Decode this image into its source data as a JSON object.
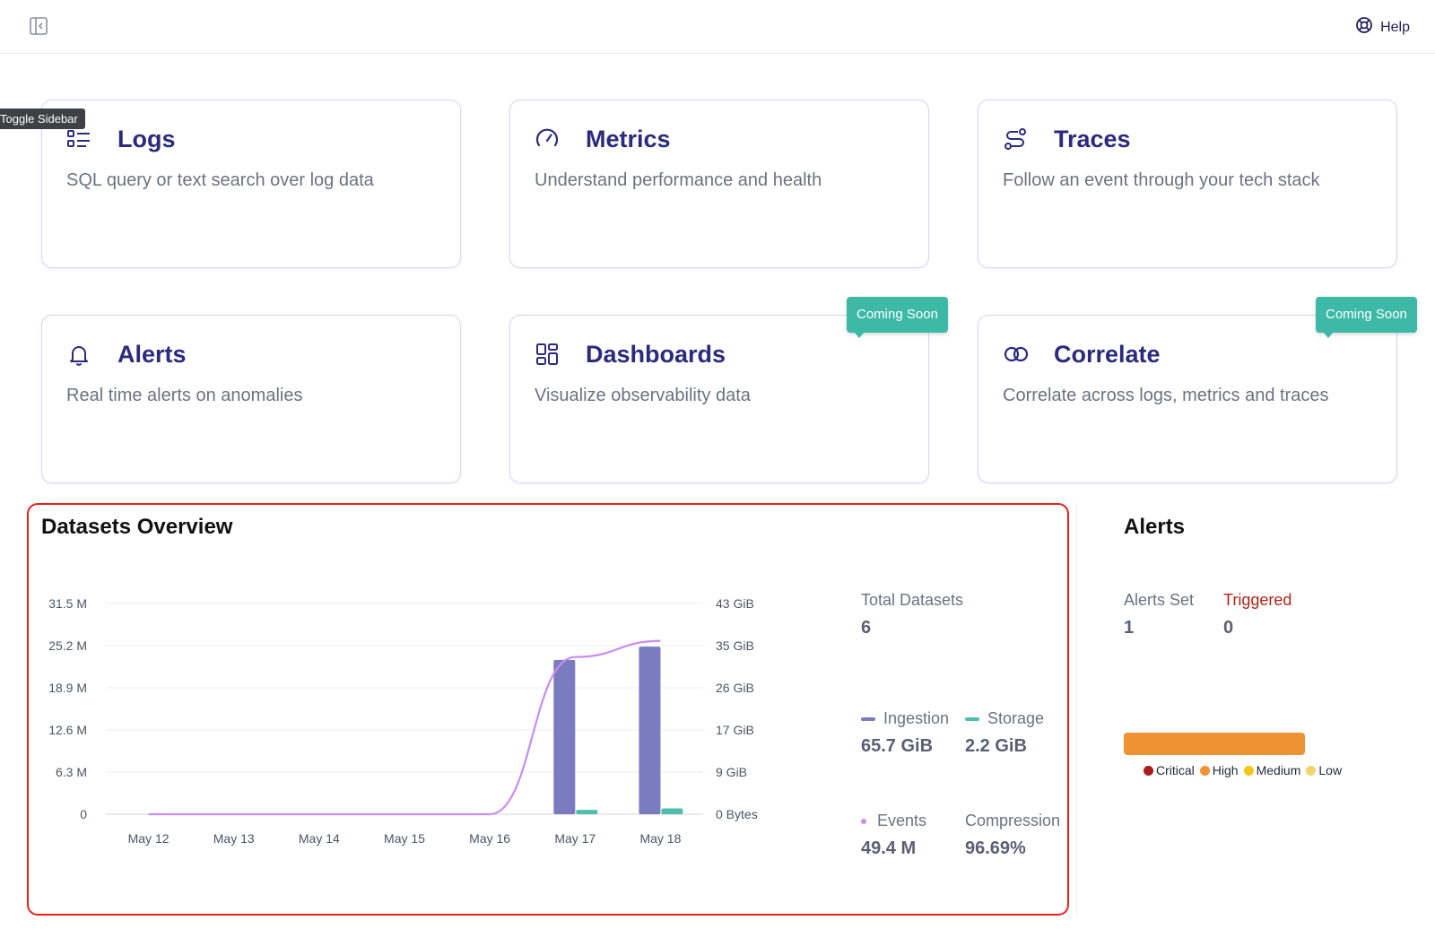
{
  "topbar": {
    "help_label": "Help",
    "toggle_tooltip": "Toggle Sidebar"
  },
  "cards": [
    {
      "title": "Logs",
      "description": "SQL query or text search over log data",
      "icon": "list-icon"
    },
    {
      "title": "Metrics",
      "description": "Understand performance and health",
      "icon": "gauge-icon"
    },
    {
      "title": "Traces",
      "description": "Follow an event through your tech stack",
      "icon": "route-icon"
    },
    {
      "title": "Alerts",
      "description": "Real time alerts on anomalies",
      "icon": "bell-icon"
    },
    {
      "title": "Dashboards",
      "description": "Visualize observability data",
      "icon": "grid-icon",
      "badge": "Coming Soon"
    },
    {
      "title": "Correlate",
      "description": "Correlate across logs, metrics and traces",
      "icon": "link-circles-icon",
      "badge": "Coming Soon"
    }
  ],
  "overview": {
    "title": "Datasets Overview",
    "total_datasets_label": "Total Datasets",
    "total_datasets_value": "6",
    "ingestion_label": "Ingestion",
    "ingestion_value": "65.7 GiB",
    "storage_label": "Storage",
    "storage_value": "2.2 GiB",
    "events_label": "Events",
    "events_value": "49.4 M",
    "compression_label": "Compression",
    "compression_value": "96.69%"
  },
  "chart_data": {
    "type": "bar",
    "categories": [
      "May 12",
      "May 13",
      "May 14",
      "May 15",
      "May 16",
      "May 17",
      "May 18"
    ],
    "y_left_ticks": [
      "0",
      "6.3 M",
      "12.6 M",
      "18.9 M",
      "25.2 M",
      "31.5 M"
    ],
    "y_right_ticks": [
      "0 Bytes",
      "9 GiB",
      "17 GiB",
      "26 GiB",
      "35 GiB",
      "43 GiB"
    ],
    "ylim_left": [
      0,
      31.5
    ],
    "ylim_right": [
      0,
      43
    ],
    "series": [
      {
        "name": "Ingestion",
        "kind": "bar",
        "axis": "right",
        "unit": "GiB",
        "values": [
          0,
          0,
          0,
          0,
          0,
          31.5,
          34.2
        ]
      },
      {
        "name": "Storage",
        "kind": "bar",
        "axis": "right",
        "unit": "GiB",
        "values": [
          0,
          0,
          0,
          0,
          0,
          0.9,
          1.2
        ]
      },
      {
        "name": "Events",
        "kind": "line",
        "axis": "left",
        "unit": "M",
        "values": [
          0,
          0,
          0,
          0,
          0,
          23.5,
          25.9
        ]
      }
    ],
    "grid": true
  },
  "alerts_panel": {
    "title": "Alerts",
    "alerts_set_label": "Alerts Set",
    "alerts_set_value": "1",
    "triggered_label": "Triggered",
    "triggered_value": "0",
    "severity_fill": {
      "Critical": 0,
      "High": 1,
      "Medium": 0,
      "Low": 0
    },
    "severities": [
      {
        "label": "Critical",
        "color": "#a91d1d"
      },
      {
        "label": "High",
        "color": "#ef9234"
      },
      {
        "label": "Medium",
        "color": "#f5c518"
      },
      {
        "label": "Low",
        "color": "#f5d36b"
      }
    ]
  },
  "colors": {
    "accent": "#2b2a7c",
    "ingestion": "#7b7bc0",
    "storage": "#4fbfad",
    "events": "#c98cf1",
    "badge": "#3fb9a7",
    "triggered": "#b42318"
  }
}
